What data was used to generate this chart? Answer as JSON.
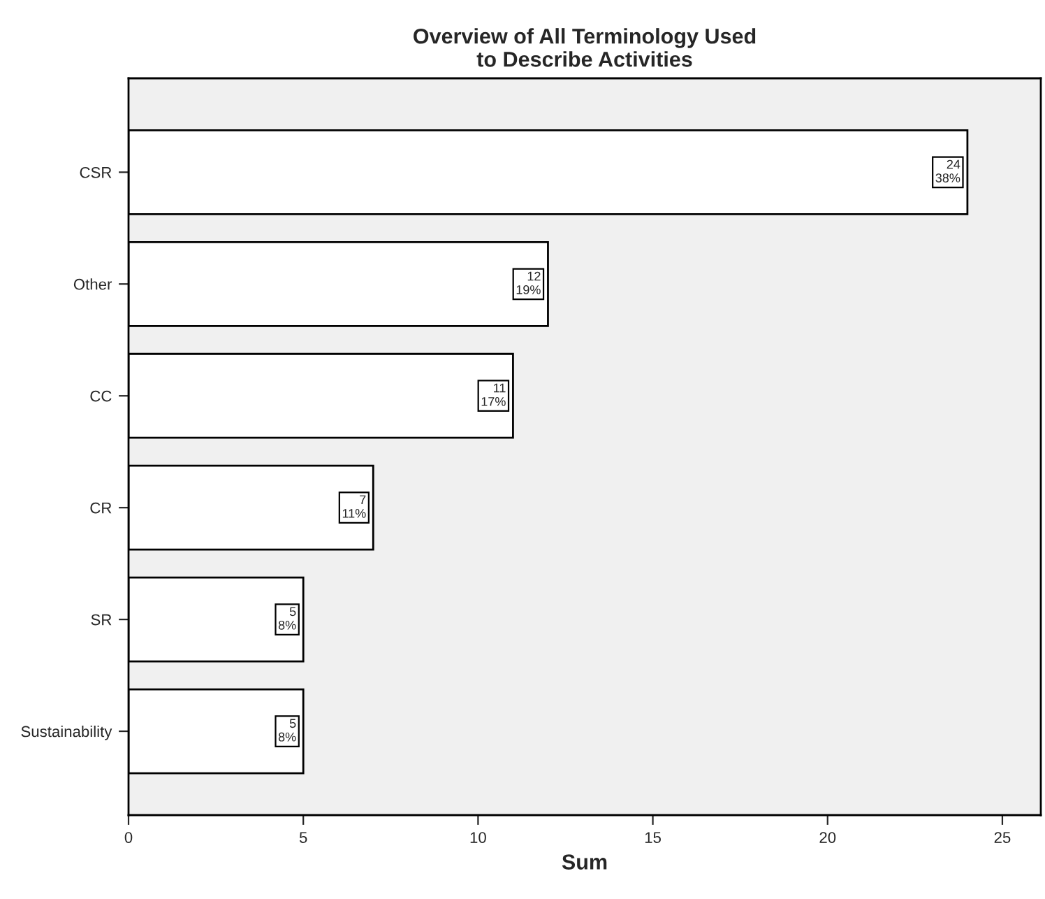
{
  "chart_data": {
    "type": "bar",
    "orientation": "horizontal",
    "title": "Overview of All Terminology Used\nto Describe Activities",
    "xlabel": "Sum",
    "categories": [
      "CSR",
      "Other",
      "CC",
      "CR",
      "SR",
      "Sustainability"
    ],
    "values": [
      24,
      12,
      11,
      7,
      5,
      5
    ],
    "value_labels": [
      "24\n38%",
      "12\n19%",
      "11\n17%",
      "7\n11%",
      "5\n8%",
      "5\n8%"
    ],
    "color": "#ffffff",
    "xlim": [
      0,
      26.1
    ],
    "xticks": [
      0,
      5,
      10,
      15,
      20,
      25
    ],
    "grid": false,
    "legend": false
  }
}
